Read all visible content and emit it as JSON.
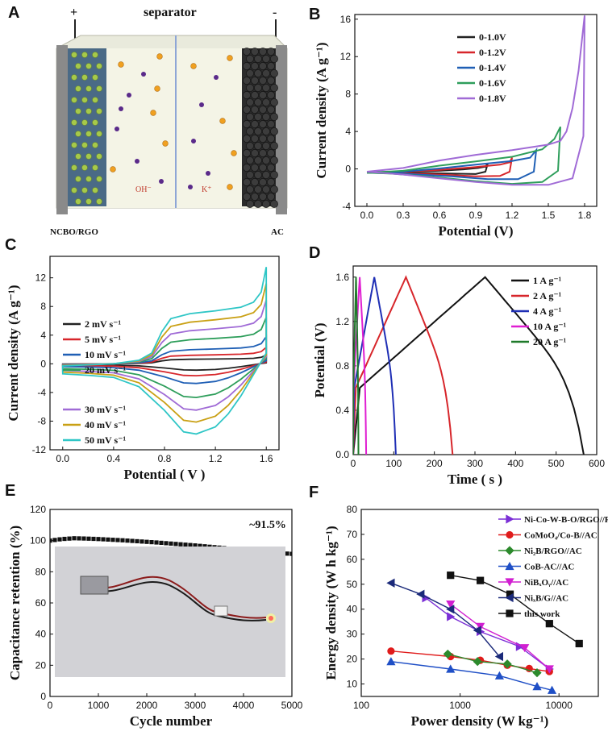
{
  "panels": {
    "A": {
      "letter": "A",
      "title": "separator",
      "plus": "+",
      "minus": "-",
      "left_label": "NCBO/RGO",
      "right_label": "AC",
      "anion": "OH⁻",
      "cation": "K⁺"
    },
    "B": {
      "letter": "B"
    },
    "C": {
      "letter": "C"
    },
    "D": {
      "letter": "D"
    },
    "E": {
      "letter": "E"
    },
    "F": {
      "letter": "F"
    }
  },
  "chart_data": [
    {
      "id": "B",
      "type": "line",
      "xlabel": "Potential (V)",
      "ylabel": "Current density (A g⁻¹)",
      "xlim": [
        -0.1,
        1.9
      ],
      "ylim": [
        -4,
        16.5
      ],
      "xticks": [
        "0.0",
        "0.3",
        "0.6",
        "0.9",
        "1.2",
        "1.5",
        "1.8"
      ],
      "yticks": [
        "-4",
        "0",
        "4",
        "8",
        "12",
        "16"
      ],
      "series": [
        {
          "name": "0-1.0V",
          "color": "#222222",
          "points": [
            [
              0,
              -0.35
            ],
            [
              0.3,
              -0.3
            ],
            [
              0.6,
              -0.2
            ],
            [
              0.8,
              -0.05
            ],
            [
              0.92,
              0.1
            ],
            [
              0.98,
              0.25
            ],
            [
              1.0,
              0.6
            ],
            [
              0.98,
              -0.3
            ],
            [
              0.9,
              -0.55
            ],
            [
              0.7,
              -0.5
            ],
            [
              0.5,
              -0.45
            ],
            [
              0.2,
              -0.4
            ],
            [
              0,
              -0.35
            ]
          ]
        },
        {
          "name": "0-1.2V",
          "color": "#d7262b",
          "points": [
            [
              0,
              -0.4
            ],
            [
              0.3,
              -0.3
            ],
            [
              0.6,
              -0.1
            ],
            [
              0.9,
              0.2
            ],
            [
              1.1,
              0.45
            ],
            [
              1.18,
              0.7
            ],
            [
              1.2,
              1.2
            ],
            [
              1.18,
              -0.3
            ],
            [
              1.1,
              -0.75
            ],
            [
              0.9,
              -0.8
            ],
            [
              0.6,
              -0.6
            ],
            [
              0.3,
              -0.45
            ],
            [
              0,
              -0.4
            ]
          ]
        },
        {
          "name": "0-1.4V",
          "color": "#1f5fb5",
          "points": [
            [
              0,
              -0.4
            ],
            [
              0.3,
              -0.3
            ],
            [
              0.6,
              0.05
            ],
            [
              0.9,
              0.45
            ],
            [
              1.2,
              0.85
            ],
            [
              1.35,
              1.2
            ],
            [
              1.4,
              2.0
            ],
            [
              1.38,
              -0.3
            ],
            [
              1.25,
              -1.1
            ],
            [
              1.0,
              -1.1
            ],
            [
              0.7,
              -0.8
            ],
            [
              0.3,
              -0.5
            ],
            [
              0,
              -0.4
            ]
          ]
        },
        {
          "name": "0-1.6V",
          "color": "#2e9e5b",
          "points": [
            [
              0,
              -0.4
            ],
            [
              0.3,
              -0.2
            ],
            [
              0.6,
              0.35
            ],
            [
              0.9,
              0.8
            ],
            [
              1.2,
              1.3
            ],
            [
              1.45,
              2.1
            ],
            [
              1.55,
              3.2
            ],
            [
              1.6,
              4.5
            ],
            [
              1.58,
              -0.2
            ],
            [
              1.45,
              -1.4
            ],
            [
              1.2,
              -1.6
            ],
            [
              0.9,
              -1.3
            ],
            [
              0.5,
              -0.8
            ],
            [
              0.2,
              -0.5
            ],
            [
              0,
              -0.4
            ]
          ]
        },
        {
          "name": "0-1.8V",
          "color": "#a06bd6",
          "points": [
            [
              0,
              -0.3
            ],
            [
              0.3,
              0.1
            ],
            [
              0.6,
              0.9
            ],
            [
              0.9,
              1.5
            ],
            [
              1.2,
              2.0
            ],
            [
              1.5,
              2.6
            ],
            [
              1.6,
              3.0
            ],
            [
              1.65,
              4.0
            ],
            [
              1.7,
              6.5
            ],
            [
              1.75,
              10.5
            ],
            [
              1.8,
              16.4
            ],
            [
              1.79,
              3.5
            ],
            [
              1.7,
              -1.0
            ],
            [
              1.5,
              -1.7
            ],
            [
              1.2,
              -1.7
            ],
            [
              0.9,
              -1.4
            ],
            [
              0.6,
              -1.0
            ],
            [
              0.3,
              -0.6
            ],
            [
              0,
              -0.3
            ]
          ]
        }
      ]
    },
    {
      "id": "C",
      "type": "line",
      "xlabel": "Potential ( V )",
      "ylabel": "Current density (A g⁻¹)",
      "xlim": [
        -0.1,
        1.7
      ],
      "ylim": [
        -12,
        15
      ],
      "xticks": [
        "0.0",
        "0.4",
        "0.8",
        "1.2",
        "1.6"
      ],
      "yticks": [
        "-12",
        "-8",
        "-4",
        "0",
        "4",
        "8",
        "12"
      ],
      "legend_top": [
        {
          "name": "2 mV s⁻¹",
          "color": "#222222"
        },
        {
          "name": "5 mV s⁻¹",
          "color": "#d7262b"
        },
        {
          "name": "10 mV s⁻¹",
          "color": "#1f5fb5"
        },
        {
          "name": "20 mV s⁻¹",
          "color": "#2e9e5b"
        }
      ],
      "legend_bottom": [
        {
          "name": "30 mV s⁻¹",
          "color": "#a06bd6"
        },
        {
          "name": "40 mV s⁻¹",
          "color": "#c9a014"
        },
        {
          "name": "50 mV s⁻¹",
          "color": "#2fc6c6"
        }
      ],
      "series": [
        {
          "name": "2 mV s⁻¹",
          "color": "#222222",
          "scale": 0.09
        },
        {
          "name": "5 mV s⁻¹",
          "color": "#d7262b",
          "scale": 0.17
        },
        {
          "name": "10 mV s⁻¹",
          "color": "#1f5fb5",
          "scale": 0.28
        },
        {
          "name": "20 mV s⁻¹",
          "color": "#2e9e5b",
          "scale": 0.48
        },
        {
          "name": "30 mV s⁻¹",
          "color": "#a06bd6",
          "scale": 0.66
        },
        {
          "name": "40 mV s⁻¹",
          "color": "#c9a014",
          "scale": 0.83
        },
        {
          "name": "50 mV s⁻¹",
          "color": "#2fc6c6",
          "scale": 1.0
        }
      ],
      "base_upper": [
        [
          0,
          -0.3
        ],
        [
          0.4,
          0.0
        ],
        [
          0.6,
          0.5
        ],
        [
          0.7,
          1.5
        ],
        [
          0.78,
          4.5
        ],
        [
          0.85,
          6.3
        ],
        [
          1.0,
          7.0
        ],
        [
          1.2,
          7.4
        ],
        [
          1.4,
          7.9
        ],
        [
          1.5,
          8.6
        ],
        [
          1.56,
          10.0
        ],
        [
          1.6,
          13.5
        ]
      ],
      "base_lower": [
        [
          1.6,
          1.5
        ],
        [
          1.5,
          -1.5
        ],
        [
          1.4,
          -4.5
        ],
        [
          1.3,
          -7.0
        ],
        [
          1.2,
          -8.8
        ],
        [
          1.05,
          -9.8
        ],
        [
          0.95,
          -9.5
        ],
        [
          0.8,
          -6.5
        ],
        [
          0.6,
          -3.2
        ],
        [
          0.4,
          -1.9
        ],
        [
          0.2,
          -1.6
        ],
        [
          0,
          -1.4
        ]
      ]
    },
    {
      "id": "D",
      "type": "line",
      "xlabel": "Time ( s )",
      "ylabel": "Potential (V)",
      "xlim": [
        0,
        600
      ],
      "ylim": [
        0,
        1.7
      ],
      "xticks": [
        "0",
        "100",
        "200",
        "300",
        "400",
        "500",
        "600"
      ],
      "yticks": [
        "0.0",
        "0.4",
        "0.8",
        "1.2",
        "1.6"
      ],
      "series": [
        {
          "name": "1 A g⁻¹",
          "color": "#111111",
          "t_charge": 325,
          "t_end": 568
        },
        {
          "name": "2 A g⁻¹",
          "color": "#d7262b",
          "t_charge": 130,
          "t_end": 245
        },
        {
          "name": "4 A g⁻¹",
          "color": "#1f2fb5",
          "t_charge": 52,
          "t_end": 105
        },
        {
          "name": "10 A g⁻¹",
          "color": "#e01fd2",
          "t_charge": 16,
          "t_end": 32
        },
        {
          "name": "20 A g⁻¹",
          "color": "#1f7a2a",
          "t_charge": 7,
          "t_end": 13
        }
      ]
    },
    {
      "id": "E",
      "type": "scatter",
      "xlabel": "Cycle number",
      "ylabel": "Capacitance retention (%)",
      "xlim": [
        0,
        5000
      ],
      "ylim": [
        0,
        120
      ],
      "xticks": [
        "0",
        "1000",
        "2000",
        "3000",
        "4000",
        "5000"
      ],
      "yticks": [
        "0",
        "20",
        "40",
        "60",
        "80",
        "100",
        "120"
      ],
      "annotation": "~91.5%",
      "points": [
        [
          0,
          100
        ],
        [
          250,
          101
        ],
        [
          500,
          101.5
        ],
        [
          750,
          101.3
        ],
        [
          1000,
          101
        ],
        [
          1250,
          100.6
        ],
        [
          1500,
          100.2
        ],
        [
          1750,
          99.7
        ],
        [
          2000,
          99.2
        ],
        [
          2250,
          98.7
        ],
        [
          2500,
          98.1
        ],
        [
          2750,
          97.5
        ],
        [
          3000,
          96.9
        ],
        [
          3250,
          96.2
        ],
        [
          3500,
          95.5
        ],
        [
          3750,
          94.7
        ],
        [
          4000,
          93.9
        ],
        [
          4250,
          93.1
        ],
        [
          4500,
          92.4
        ],
        [
          4750,
          91.9
        ],
        [
          5000,
          91.5
        ]
      ]
    },
    {
      "id": "F",
      "type": "line",
      "xlabel": "Power density (W kg⁻¹)",
      "ylabel": "Energy density (W h kg⁻¹)",
      "xscale": "log",
      "xlim": [
        100,
        25000
      ],
      "ylim": [
        5,
        80
      ],
      "xticks": [
        "100",
        "1000",
        "10000"
      ],
      "yticks": [
        "10",
        "20",
        "30",
        "40",
        "50",
        "60",
        "70",
        "80"
      ],
      "series": [
        {
          "name": "Ni-Co-W-B-O/RGO//RGO",
          "color": "#7b2fd6",
          "marker": "tri-right",
          "points": [
            [
              450,
              44.5
            ],
            [
              800,
              37
            ],
            [
              1600,
              31
            ],
            [
              4000,
              25
            ],
            [
              8000,
              16
            ]
          ]
        },
        {
          "name": "CoMoO₄/Co-B//AC",
          "color": "#e01b1b",
          "marker": "circle",
          "points": [
            [
              200,
              23.2
            ],
            [
              800,
              21
            ],
            [
              1600,
              19.5
            ],
            [
              3000,
              17.5
            ],
            [
              5000,
              16.2
            ],
            [
              8000,
              15
            ]
          ]
        },
        {
          "name": "Ni₂B/RGO//AC",
          "color": "#2c8a2c",
          "marker": "diamond",
          "points": [
            [
              750,
              22
            ],
            [
              1500,
              19
            ],
            [
              3000,
              18
            ],
            [
              6000,
              14.5
            ]
          ]
        },
        {
          "name": "CoB-AC//AC",
          "color": "#1f4fc6",
          "marker": "tri-up",
          "points": [
            [
              200,
              19
            ],
            [
              800,
              16
            ],
            [
              2500,
              13.3
            ],
            [
              6000,
              9
            ],
            [
              8500,
              7.5
            ]
          ]
        },
        {
          "name": "NiBₓOᵧ//AC",
          "color": "#d11fd1",
          "marker": "tri-down",
          "points": [
            [
              800,
              42
            ],
            [
              1600,
              33
            ],
            [
              4500,
              24.5
            ],
            [
              8000,
              16
            ]
          ]
        },
        {
          "name": "NiₓB/G//AC",
          "color": "#1b2a7a",
          "marker": "tri-left",
          "points": [
            [
              200,
              50.5
            ],
            [
              400,
              46
            ],
            [
              800,
              40
            ],
            [
              1500,
              31.5
            ],
            [
              2500,
              21
            ]
          ]
        },
        {
          "name": "this work",
          "color": "#111111",
          "marker": "square",
          "points": [
            [
              800,
              53.6
            ],
            [
              1600,
              51.5
            ],
            [
              3200,
              46
            ],
            [
              8000,
              34.2
            ],
            [
              16000,
              26.2
            ]
          ]
        }
      ]
    }
  ]
}
